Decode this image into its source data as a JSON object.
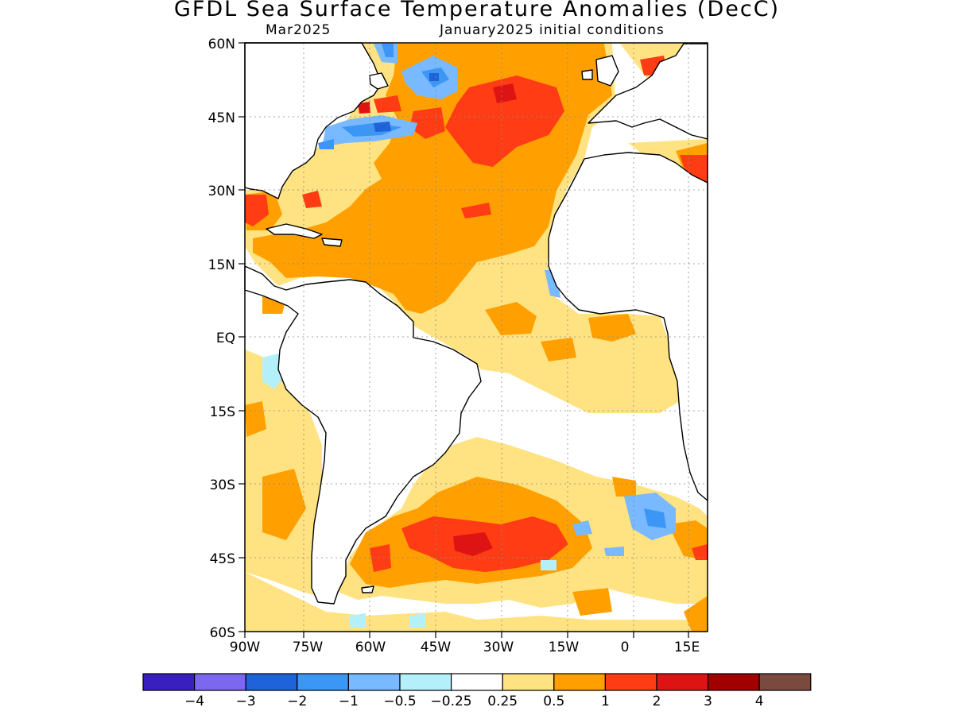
{
  "title": "GFDL Sea Surface Temperature Anomalies (DecC)",
  "subtitle_left": "Mar2025",
  "subtitle_right": "January2025 initial conditions",
  "lat_labels": [
    "60N",
    "45N",
    "30N",
    "15N",
    "EQ",
    "15S",
    "30S",
    "45S",
    "60S"
  ],
  "lon_labels": [
    "90W",
    "75W",
    "60W",
    "45W",
    "30W",
    "15W",
    "0",
    "15E"
  ],
  "colorbar": {
    "colors": [
      "#3a1fbf",
      "#7b68ee",
      "#1e64d8",
      "#3c96f5",
      "#78b9ff",
      "#b4f0fa",
      "#ffffff",
      "#ffe382",
      "#ffa000",
      "#ff3c14",
      "#de1414",
      "#a00000",
      "#7b4a3e"
    ],
    "tick_labels": [
      "−4",
      "−3",
      "−2",
      "−1",
      "−0.5",
      "−0.25",
      "0.25",
      "0.5",
      "1",
      "2",
      "3",
      "4"
    ]
  },
  "map_data": {
    "type": "sst_anomaly_map",
    "region": "Atlantic Ocean, 90W–20E, 60S–60N",
    "units": "DecC"
  }
}
